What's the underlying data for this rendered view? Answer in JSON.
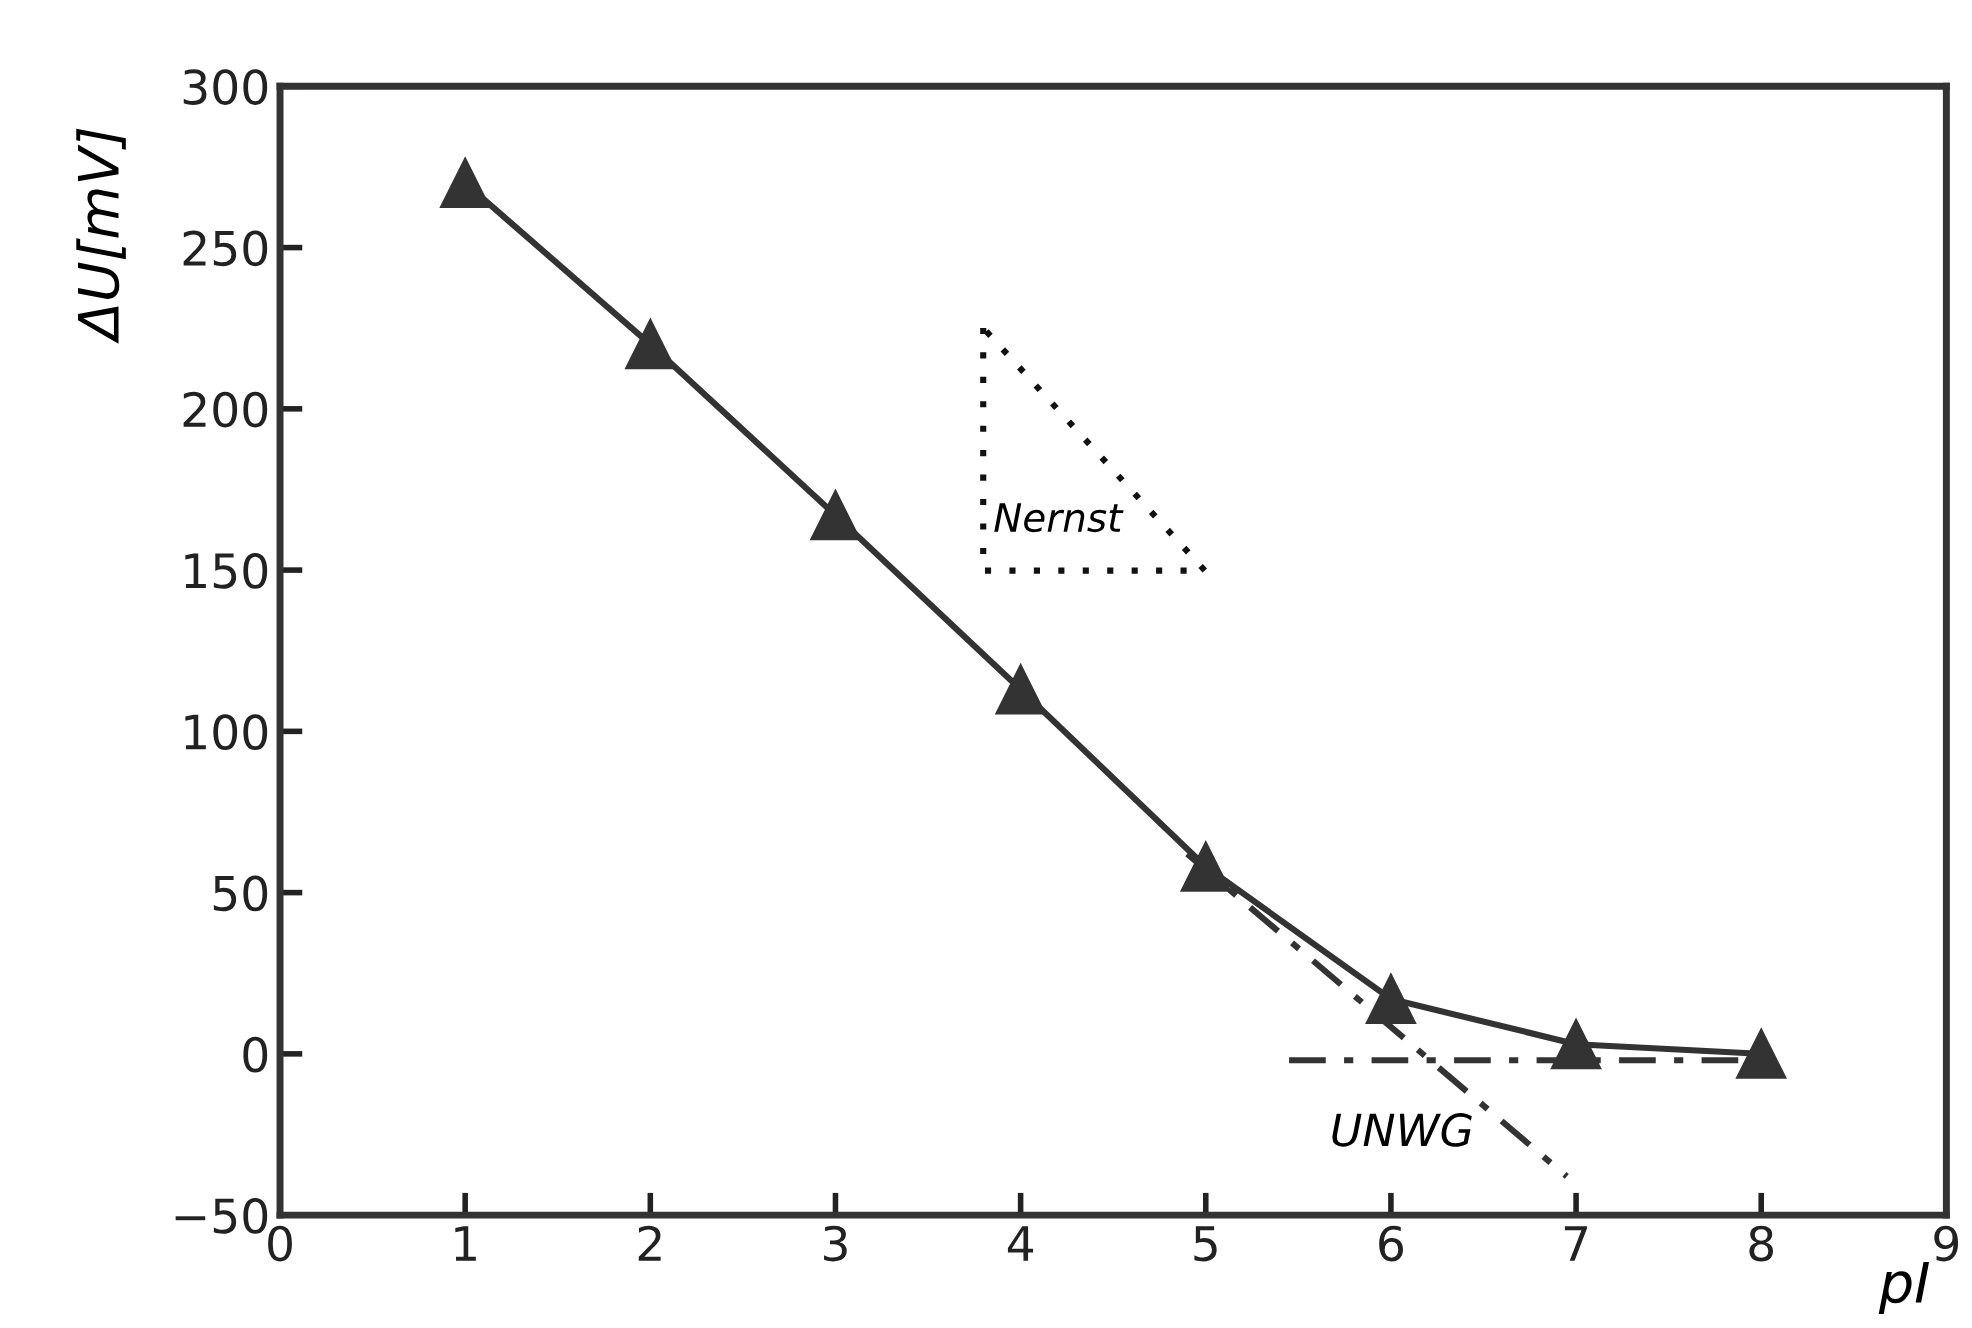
{
  "chart_data": {
    "type": "line",
    "xlabel": "pI",
    "ylabel": "ΔU[mV]",
    "xlim": [
      0,
      9
    ],
    "xticks": [
      0,
      1,
      2,
      3,
      4,
      5,
      6,
      7,
      8,
      9
    ],
    "ylim": [
      -50,
      300
    ],
    "yticks": [
      {
        "value": -50,
        "label": "−50"
      },
      0,
      50,
      100,
      150,
      200,
      250,
      300
    ],
    "grid": false,
    "legend": false,
    "series": [
      {
        "x": [
          1,
          2,
          3,
          4,
          5,
          6,
          7,
          8
        ],
        "values": [
          270,
          220,
          167,
          113,
          58,
          17,
          3,
          0
        ],
        "color": "#333333",
        "marker": "triangle",
        "line_style": "solid"
      },
      {
        "x": [
          4.9,
          6.95
        ],
        "values": [
          62,
          -38
        ],
        "color": "#333333",
        "marker": "none",
        "line_style": "dashdot"
      },
      {
        "x": [
          5.45,
          8
        ],
        "values": [
          -2,
          -2
        ],
        "color": "#333333",
        "marker": "none",
        "line_style": "dashdot"
      }
    ],
    "annotations": [
      "Nernst",
      "UNWG"
    ]
  }
}
